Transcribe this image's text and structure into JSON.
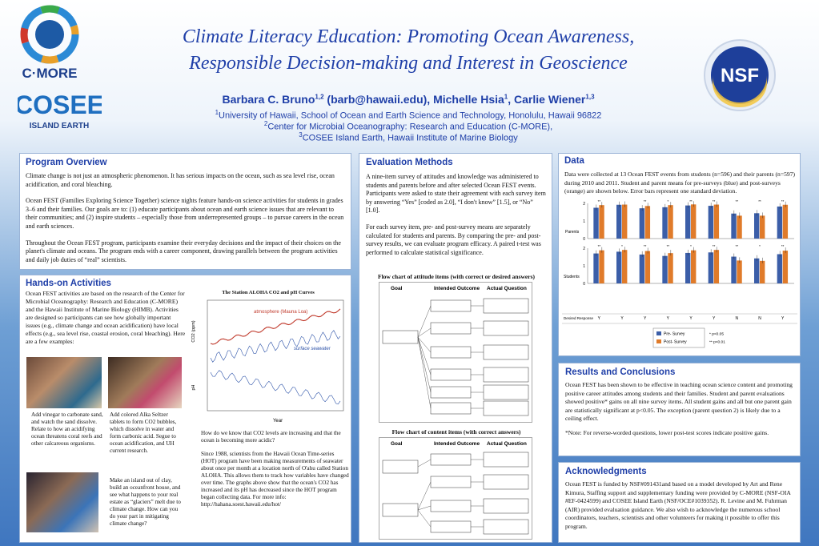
{
  "header": {
    "title_line1": "Climate Literacy Education: Promoting Ocean Awareness,",
    "title_line2": "Responsible Decision-making and Interest in Geoscience",
    "author1": "Barbara C. Bruno",
    "author1_sup": "1,2",
    "email": "(barb@hawaii.edu),",
    "author2": "Michelle Hsia",
    "author2_sup": "1",
    "author3": "Carlie Wiener",
    "author3_sup": "1,3",
    "affil1_sup": "1",
    "affil1": "University of Hawaii, School of Ocean and Earth Science and Technology, Honolulu, Hawaii 96822",
    "affil2_sup": "2",
    "affil2": "Center for Microbial Oceanography: Research and Education (C-MORE),",
    "affil3_sup": "3",
    "affil3": "COSEE Island Earth, Hawaii Institute of Marine Biology"
  },
  "logos": {
    "cmore": "C·MORE",
    "cosee": "COSEE",
    "cosee_sub": "ISLAND EARTH",
    "nsf": "NSF"
  },
  "program_overview": {
    "title": "Program Overview",
    "p1": "Climate change is not just an atmospheric phenomenon. It has serious impacts on the ocean, such as sea level rise, ocean acidification, and coral bleaching.",
    "p2": "Ocean FEST (Families Exploring Science Together) science nights feature hands-on science activities for students in grades 3–6 and their families. Our goals are to: (1) educate participants about ocean and earth science issues that are relevant to their communities; and (2) inspire students – especially those from underrepresented groups – to pursue careers in the ocean and earth sciences.",
    "p3": "Throughout the  Ocean FEST program, participants examine their everyday decisions and the impact of their choices on the planet's climate and oceans. The program ends with a career component, drawing parallels between the program activities and daily job duties of “real” scientists."
  },
  "hands_on": {
    "title": "Hands-on Activities",
    "intro": "Ocean FEST activities are based on the research of the Center for Microbial Oceanography: Research and Education (C-MORE) and the Hawaii Institute of Marine Biology (HIMB). Activities are designed so participants can see how globally important issues (e.g., climate change and ocean acidification) have local effects (e.g., sea level rise, coastal erosion, coral bleaching).  Here are a few examples:",
    "cap1": "Add vinegar to carbonate sand, and watch the sand dissolve. Relate to how an acidifying ocean threatens coral reefs and other calcareous organisms.",
    "cap2": "Add colored Alka Seltzer tablets to form CO2 bubbles, which dissolve in water and form carbonic acid. Segue to ocean acidification, and UH current research.",
    "cap3": "Make an island out of clay, build an oceanfront house, and see what happens to your real estate as “glaciers” melt due to climate change.  How can you do your part in mitigating climate change?",
    "aloha_title": "The Station ALOHA CO2 and pH Curves",
    "aloha_label_atm": "atmosphere (Mauna Loa)",
    "aloha_label_sea": "surface seawater",
    "aloha_xlabel": "Year",
    "aloha_ylabel_co2": "CO2 (ppm)",
    "aloha_ylabel_ph": "pH",
    "aloha_text1": "How do we know that CO2 levels are increasing and that the ocean is becoming more acidic?",
    "aloha_text2": "Since 1988, scientists from the Hawaii Ocean Time-series (HOT) program have been making measurements of seawater about once per month at a location north of O'ahu called Station ALOHA. This allows them to track how variables have changed over time. The graphs above show that the ocean's CO2 has increased and its pH has decreased since the HOT program began collecting data. For more info: http://hahana.soest.hawaii.edu/hot/"
  },
  "evaluation": {
    "title": "Evaluation Methods",
    "p1": "A nine-item survey of attitudes and knowledge was administered to students and parents before and after selected Ocean FEST events. Participants were asked to state their agreement with each survey item by answering “Yes” [coded as 2.0], “I don't know” [1.5], or “No” [1.0].",
    "p2": "For each survey item, pre- and post-survey means are separately calculated for students and parents. By comparing the pre- and post-survey results, we can evaluate program efficacy. A paired t-test was performed to calculate statistical significance.",
    "flow1_caption": "Flow chart of attitude items (with correct or desired answers)",
    "flow2_caption": "Flow chart of content items (with correct answers)",
    "flow_headers": [
      "Goal",
      "Intended Outcome",
      "Actual Question"
    ]
  },
  "data": {
    "title": "Data",
    "text": "Data were collected at 13 Ocean FEST events from students (n=596) and their parents (n=597) during 2010 and 2011. Student and parent means for pre-surveys (blue) and post-surveys (orange) are shown below.  Error bars represent one standard deviation.",
    "row_labels": [
      "Parents",
      "Students"
    ],
    "legend_pre": "Pre- Survey",
    "legend_post": "Post- Survey",
    "sig1": "* p<0.05",
    "sig2": "** p<0.01",
    "desired_label": "Desired Response",
    "desired_values": [
      "Y",
      "Y",
      "Y",
      "Y",
      "Y",
      "Y",
      "N",
      "N",
      "Y"
    ]
  },
  "results": {
    "title": "Results and Conclusions",
    "p1": "Ocean FEST has been shown to be effective in teaching ocean science content and promoting positive career attitudes among students and their families. Student and parent evaluations showed positive* gains on all nine survey items. All student gains and all but one parent gain are statistically significant at p<0.05. The exception (parent question 2) is likely due to a ceiling effect.",
    "p2": "*Note: For reverse-worded questions, lower post-test scores indicate positive gains."
  },
  "ack": {
    "title": "Acknowledgments",
    "text": "Ocean FEST is funded by NSF#091431and based on a model developed by Art and Rene Kimura, Staffing support and supplementary funding were provided by C-MORE (NSF-OIA #EF-0424599) and COSEE Island Earth (NSF/OCE#1039352). R. Levine and M. Fuhrman (AIR) provided evaluation guidance. We also wish to acknowledge the numerous school coordinators, teachers, scientists and other volunteers for making it possible to offer this program."
  },
  "chart_data": [
    {
      "type": "bar",
      "name_row": "Parents",
      "categories": [
        "1",
        "2",
        "3",
        "4",
        "5",
        "6",
        "7",
        "8",
        "9"
      ],
      "series": [
        {
          "name": "Pre- Survey",
          "values": [
            1.75,
            1.92,
            1.72,
            1.78,
            1.88,
            1.86,
            1.42,
            1.44,
            1.82
          ]
        },
        {
          "name": "Post- Survey",
          "values": [
            1.9,
            1.93,
            1.85,
            1.9,
            1.94,
            1.93,
            1.3,
            1.3,
            1.92
          ]
        }
      ],
      "ylim": [
        0,
        2
      ],
      "sig": [
        "**",
        "",
        "**",
        "*",
        "**",
        "**",
        "**",
        "**",
        "**"
      ],
      "colors": {
        "pre": "#3b5ea8",
        "post": "#e07b2a"
      }
    },
    {
      "type": "bar",
      "name_row": "Students",
      "categories": [
        "1",
        "2",
        "3",
        "4",
        "5",
        "6",
        "7",
        "8",
        "9"
      ],
      "series": [
        {
          "name": "Pre- Survey",
          "values": [
            1.7,
            1.8,
            1.64,
            1.56,
            1.73,
            1.76,
            1.52,
            1.42,
            1.66
          ]
        },
        {
          "name": "Post- Survey",
          "values": [
            1.88,
            1.9,
            1.84,
            1.72,
            1.88,
            1.9,
            1.3,
            1.28,
            1.86
          ]
        }
      ],
      "ylim": [
        0,
        2
      ],
      "sig": [
        "**",
        "*",
        "**",
        "**",
        "*",
        "**",
        "**",
        "*",
        "**"
      ],
      "colors": {
        "pre": "#3b5ea8",
        "post": "#e07b2a"
      }
    }
  ]
}
